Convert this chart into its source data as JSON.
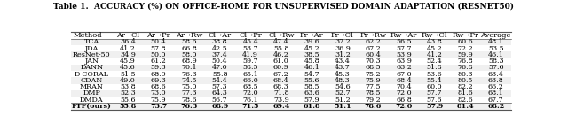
{
  "title": "Table 1.  ACCURACY (%) ON OFFICE-HOME FOR UNSUPERVISED DOMAIN ADAPTATION (RESNET50)",
  "columns": [
    "Method",
    "Ar→Cl",
    "Ar→Pr",
    "Ar→Rw",
    "Cl→Ar",
    "Cl→Pr",
    "Cl→Rw",
    "Pr→Ar",
    "Pr→Cl",
    "Pr→Rw",
    "Rw→Ar",
    "Rw→Cl",
    "Rw→Pr",
    "Average"
  ],
  "rows": [
    [
      "TCA",
      "36.4",
      "50.4",
      "58.6",
      "38.8",
      "45.4",
      "47.4",
      "39.6",
      "37.2",
      "62.2",
      "56.5",
      "43.8",
      "60.6",
      "48.1"
    ],
    [
      "JDA",
      "41.2",
      "57.8",
      "66.8",
      "42.5",
      "53.7",
      "55.8",
      "45.2",
      "36.9",
      "67.2",
      "57.7",
      "45.2",
      "72.2",
      "53.5"
    ],
    [
      "ResNet-50",
      "34.9",
      "50.0",
      "58.0",
      "37.4",
      "41.9",
      "46.2",
      "38.5",
      "31.2",
      "60.4",
      "53.9",
      "41.2",
      "59.9",
      "46.1"
    ],
    [
      "JAN",
      "45.9",
      "61.2",
      "68.9",
      "50.4",
      "59.7",
      "61.0",
      "45.8",
      "43.4",
      "70.3",
      "63.9",
      "52.4",
      "76.8",
      "58.3"
    ],
    [
      "DANN",
      "45.6",
      "59.3",
      "70.1",
      "47.0",
      "58.5",
      "60.9",
      "46.1",
      "43.7",
      "68.5",
      "63.2",
      "51.8",
      "76.8",
      "57.6"
    ],
    [
      "D-CORAL",
      "51.5",
      "68.9",
      "76.3",
      "55.8",
      "65.1",
      "67.2",
      "54.7",
      "45.3",
      "75.2",
      "67.0",
      "53.6",
      "80.3",
      "63.4"
    ],
    [
      "CDAN",
      "49.0",
      "69.3",
      "74.5",
      "54.4",
      "66.0",
      "68.4",
      "55.6",
      "48.3",
      "75.9",
      "68.4",
      "55.4",
      "80.5",
      "63.8"
    ],
    [
      "MRAN",
      "53.8",
      "68.6",
      "75.0",
      "57.3",
      "68.5",
      "68.3",
      "58.5",
      "54.6",
      "77.5",
      "70.4",
      "60.0",
      "82.2",
      "66.2"
    ],
    [
      "DMP",
      "52.3",
      "73.0",
      "77.3",
      "64.3",
      "72.0",
      "71.8",
      "63.6",
      "52.7",
      "78.5",
      "72.0",
      "57.7",
      "81.6",
      "68.1"
    ],
    [
      "DMDA",
      "55.6",
      "75.9",
      "78.6",
      "56.7",
      "76.1",
      "73.9",
      "57.9",
      "51.2",
      "79.2",
      "66.8",
      "57.6",
      "82.6",
      "67.7"
    ],
    [
      "FTF(ours)",
      "55.8",
      "73.7",
      "76.3",
      "68.9",
      "71.5",
      "69.4",
      "61.8",
      "51.1",
      "78.6",
      "72.0",
      "57.9",
      "81.4",
      "68.2"
    ]
  ],
  "font_size": 5.8,
  "title_font_size": 6.5,
  "header_font_size": 6.0,
  "bg_color": "#f5f5f5",
  "line_color": "#555555",
  "last_row_bold": true
}
